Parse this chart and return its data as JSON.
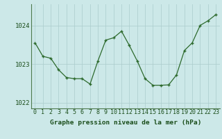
{
  "x": [
    0,
    1,
    2,
    3,
    4,
    5,
    6,
    7,
    8,
    9,
    10,
    11,
    12,
    13,
    14,
    15,
    16,
    17,
    18,
    19,
    20,
    21,
    22,
    23
  ],
  "y": [
    1023.55,
    1023.2,
    1023.15,
    1022.85,
    1022.65,
    1022.62,
    1022.62,
    1022.48,
    1023.08,
    1023.62,
    1023.68,
    1023.85,
    1023.48,
    1023.08,
    1022.62,
    1022.45,
    1022.45,
    1022.46,
    1022.72,
    1023.35,
    1023.55,
    1024.0,
    1024.12,
    1024.28
  ],
  "line_color": "#2d6a2d",
  "marker_color": "#2d6a2d",
  "bg_color": "#cce8e8",
  "grid_color": "#aacccc",
  "axis_label_color": "#1a4d1a",
  "xlabel": "Graphe pression niveau de la mer (hPa)",
  "ylim": [
    1021.85,
    1024.55
  ],
  "yticks": [
    1022,
    1023,
    1024
  ],
  "xticks": [
    0,
    1,
    2,
    3,
    4,
    5,
    6,
    7,
    8,
    9,
    10,
    11,
    12,
    13,
    14,
    15,
    16,
    17,
    18,
    19,
    20,
    21,
    22,
    23
  ],
  "xlabel_fontsize": 6.8,
  "tick_fontsize": 6.0,
  "ytick_fontsize": 6.5
}
